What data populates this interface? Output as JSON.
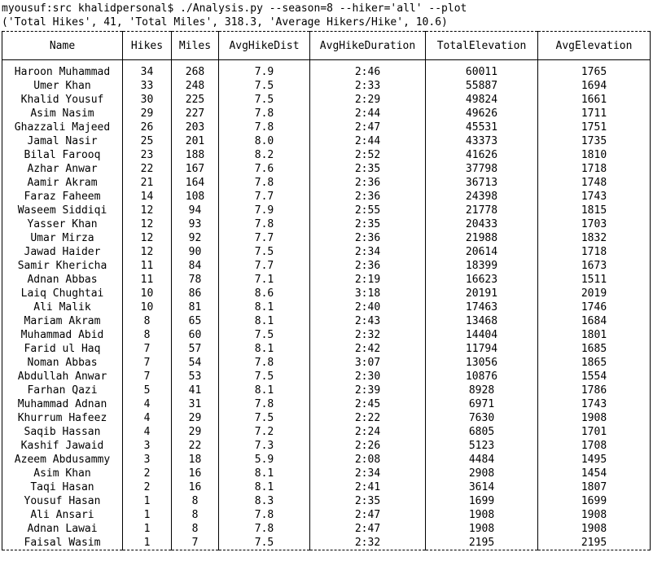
{
  "prompt": "myousuf:src khalidpersonal$ ./Analysis.py --season=8 --hiker='all' --plot",
  "summary": "('Total Hikes', 41, 'Total Miles', 318.3, 'Average Hikers/Hike', 10.6)",
  "headers": [
    "Name",
    "Hikes",
    "Miles",
    "AvgHikeDist",
    "AvgHikeDuration",
    "TotalElevation",
    "AvgElevation"
  ],
  "rows": [
    [
      "Haroon Muhammad",
      "34",
      "268",
      "7.9",
      "2:46",
      "60011",
      "1765"
    ],
    [
      "Umer Khan",
      "33",
      "248",
      "7.5",
      "2:33",
      "55887",
      "1694"
    ],
    [
      "Khalid Yousuf",
      "30",
      "225",
      "7.5",
      "2:29",
      "49824",
      "1661"
    ],
    [
      "Asim Nasim",
      "29",
      "227",
      "7.8",
      "2:44",
      "49626",
      "1711"
    ],
    [
      "Ghazzali Majeed",
      "26",
      "203",
      "7.8",
      "2:47",
      "45531",
      "1751"
    ],
    [
      "Jamal Nasir",
      "25",
      "201",
      "8.0",
      "2:44",
      "43373",
      "1735"
    ],
    [
      "Bilal Farooq",
      "23",
      "188",
      "8.2",
      "2:52",
      "41626",
      "1810"
    ],
    [
      "Azhar Anwar",
      "22",
      "167",
      "7.6",
      "2:35",
      "37798",
      "1718"
    ],
    [
      "Aamir Akram",
      "21",
      "164",
      "7.8",
      "2:36",
      "36713",
      "1748"
    ],
    [
      "Faraz Faheem",
      "14",
      "108",
      "7.7",
      "2:36",
      "24398",
      "1743"
    ],
    [
      "Waseem Siddiqi",
      "12",
      "94",
      "7.9",
      "2:55",
      "21778",
      "1815"
    ],
    [
      "Yasser Khan",
      "12",
      "93",
      "7.8",
      "2:35",
      "20433",
      "1703"
    ],
    [
      "Umar Mirza",
      "12",
      "92",
      "7.7",
      "2:36",
      "21988",
      "1832"
    ],
    [
      "Jawad Haider",
      "12",
      "90",
      "7.5",
      "2:34",
      "20614",
      "1718"
    ],
    [
      "Samir Khericha",
      "11",
      "84",
      "7.7",
      "2:36",
      "18399",
      "1673"
    ],
    [
      "Adnan Abbas",
      "11",
      "78",
      "7.1",
      "2:19",
      "16623",
      "1511"
    ],
    [
      "Laiq Chughtai",
      "10",
      "86",
      "8.6",
      "3:18",
      "20191",
      "2019"
    ],
    [
      "Ali Malik",
      "10",
      "81",
      "8.1",
      "2:40",
      "17463",
      "1746"
    ],
    [
      "Mariam Akram",
      "8",
      "65",
      "8.1",
      "2:43",
      "13468",
      "1684"
    ],
    [
      "Muhammad Abid",
      "8",
      "60",
      "7.5",
      "2:32",
      "14404",
      "1801"
    ],
    [
      "Farid ul Haq",
      "7",
      "57",
      "8.1",
      "2:42",
      "11794",
      "1685"
    ],
    [
      "Noman Abbas",
      "7",
      "54",
      "7.8",
      "3:07",
      "13056",
      "1865"
    ],
    [
      "Abdullah Anwar",
      "7",
      "53",
      "7.5",
      "2:30",
      "10876",
      "1554"
    ],
    [
      "Farhan Qazi",
      "5",
      "41",
      "8.1",
      "2:39",
      "8928",
      "1786"
    ],
    [
      "Muhammad Adnan",
      "4",
      "31",
      "7.8",
      "2:45",
      "6971",
      "1743"
    ],
    [
      "Khurrum Hafeez",
      "4",
      "29",
      "7.5",
      "2:22",
      "7630",
      "1908"
    ],
    [
      "Saqib Hassan",
      "4",
      "29",
      "7.2",
      "2:24",
      "6805",
      "1701"
    ],
    [
      "Kashif Jawaid",
      "3",
      "22",
      "7.3",
      "2:26",
      "5123",
      "1708"
    ],
    [
      "Azeem Abdusammy",
      "3",
      "18",
      "5.9",
      "2:08",
      "4484",
      "1495"
    ],
    [
      "Asim Khan",
      "2",
      "16",
      "8.1",
      "2:34",
      "2908",
      "1454"
    ],
    [
      "Taqi Hasan",
      "2",
      "16",
      "8.1",
      "2:41",
      "3614",
      "1807"
    ],
    [
      "Yousuf Hasan",
      "1",
      "8",
      "8.3",
      "2:35",
      "1699",
      "1699"
    ],
    [
      "Ali Ansari",
      "1",
      "8",
      "7.8",
      "2:47",
      "1908",
      "1908"
    ],
    [
      "Adnan Lawai",
      "1",
      "8",
      "7.8",
      "2:47",
      "1908",
      "1908"
    ],
    [
      "Faisal Wasim",
      "1",
      "7",
      "7.5",
      "2:32",
      "2195",
      "2195"
    ]
  ]
}
